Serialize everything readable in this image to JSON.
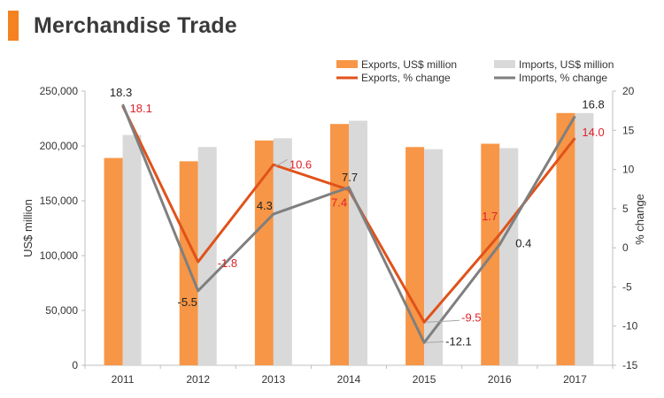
{
  "page": {
    "title": "Merchandise Trade"
  },
  "chart_data": {
    "type": "bar",
    "categories": [
      "2011",
      "2012",
      "2013",
      "2014",
      "2015",
      "2016",
      "2017"
    ],
    "series": [
      {
        "name": "Exports, US$ million",
        "kind": "bar",
        "axis": "left",
        "color": "#f79646",
        "values": [
          189000,
          186000,
          205000,
          220000,
          199000,
          202000,
          230000
        ]
      },
      {
        "name": "Imports, US$ million",
        "kind": "bar",
        "axis": "left",
        "color": "#d9d9d9",
        "values": [
          210000,
          199000,
          207000,
          223000,
          197000,
          198000,
          230000
        ]
      },
      {
        "name": "Exports, % change",
        "kind": "line",
        "axis": "right",
        "color": "#e0521a",
        "label_color": "#e0202a",
        "values": [
          18.1,
          -1.8,
          10.6,
          7.4,
          -9.5,
          1.7,
          14.0
        ],
        "labels": [
          "18.1",
          "-1.8",
          "10.6",
          "7.4",
          "-9.5",
          "1.7",
          "14.0"
        ]
      },
      {
        "name": "Imports, % change",
        "kind": "line",
        "axis": "right",
        "color": "#7f7f7f",
        "label_color": "#222222",
        "values": [
          18.3,
          -5.5,
          4.3,
          7.7,
          -12.1,
          0.4,
          16.8
        ],
        "labels": [
          "18.3",
          "-5.5",
          "4.3",
          "7.7",
          "-12.1",
          "0.4",
          "16.8"
        ]
      }
    ],
    "ylabel": "US$ million",
    "y2label": "% change",
    "ylim": [
      0,
      250000
    ],
    "y2lim": [
      -15,
      20
    ],
    "y_ticks": [
      "0",
      "50,000",
      "100,000",
      "150,000",
      "200,000",
      "250,000"
    ],
    "y2_ticks": [
      "-15",
      "-10",
      "-5",
      "0",
      "5",
      "10",
      "15",
      "20"
    ],
    "legend_placement": "top-right",
    "grid": false
  }
}
